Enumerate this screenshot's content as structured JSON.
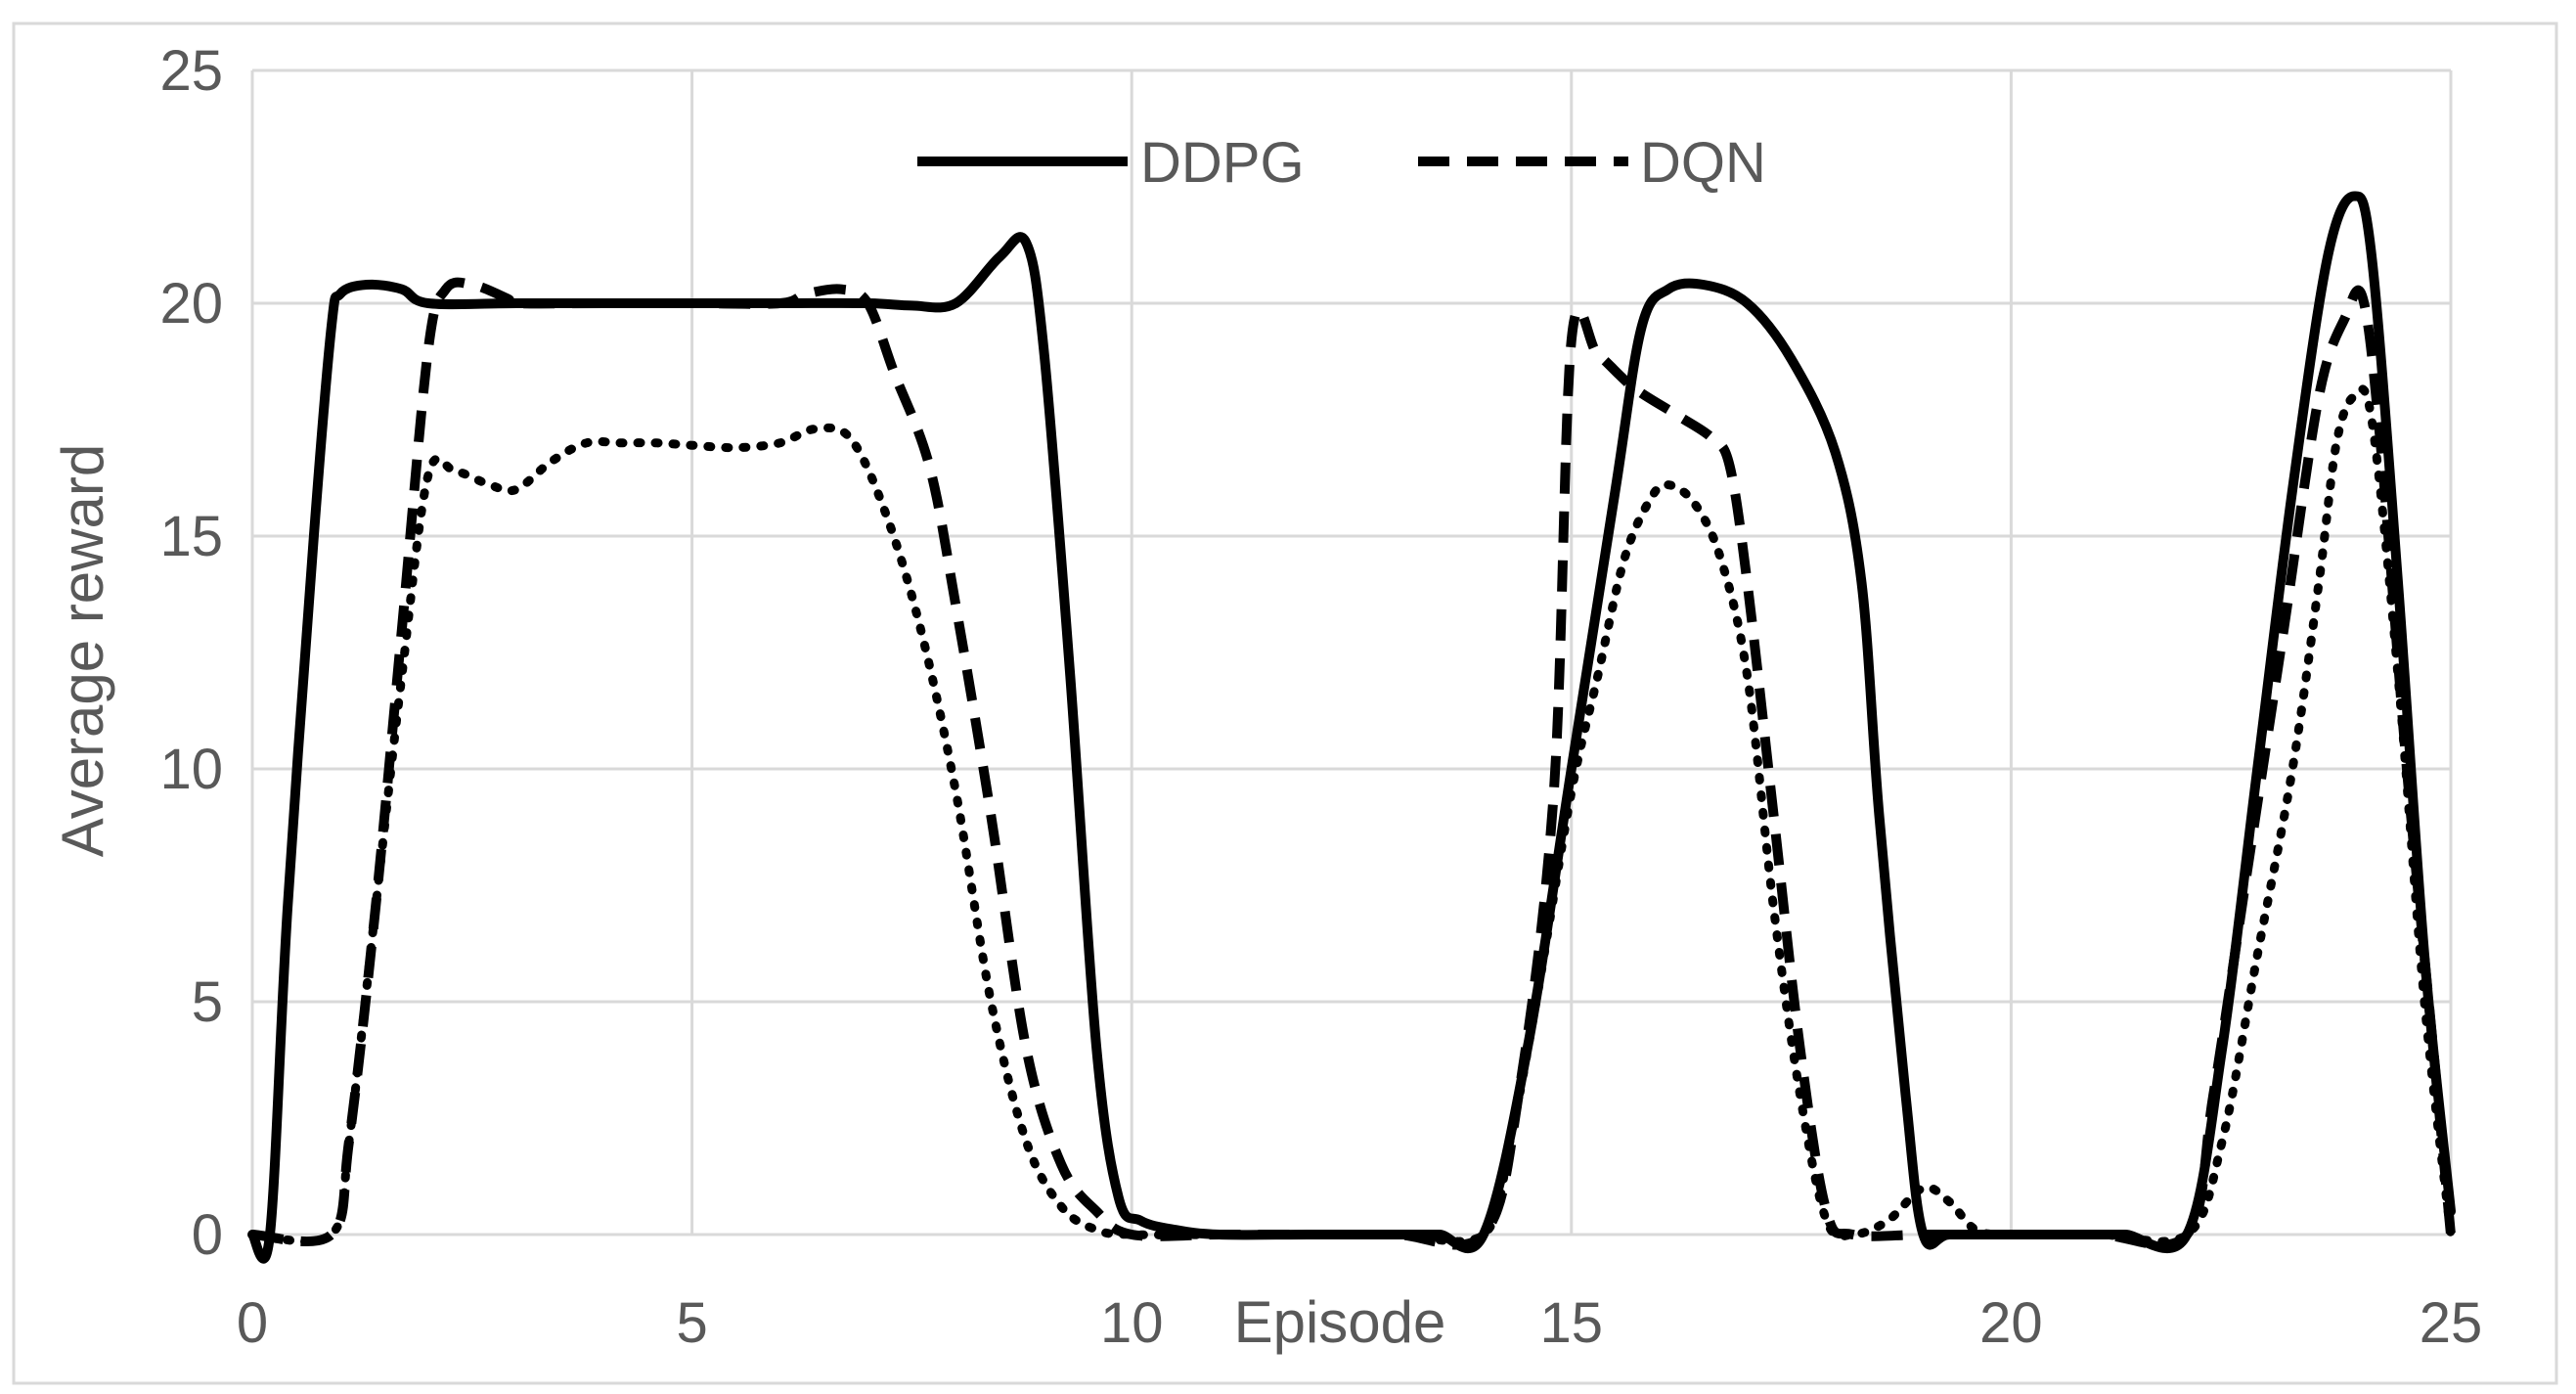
{
  "chart_data": {
    "type": "line",
    "title": "",
    "xlabel": "Episode",
    "ylabel": "Average reward",
    "xlim": [
      0,
      25
    ],
    "ylim": [
      0,
      25
    ],
    "x_ticks": [
      0,
      5,
      10,
      15,
      20,
      25
    ],
    "y_ticks": [
      0,
      5,
      10,
      15,
      20,
      25
    ],
    "grid": true,
    "legend_position": "top-center",
    "series": [
      {
        "name": "DDPG",
        "style": "solid",
        "color": "#000000",
        "points": [
          [
            0,
            0
          ],
          [
            0.2,
            0
          ],
          [
            0.4,
            7
          ],
          [
            0.7,
            15
          ],
          [
            0.9,
            19.5
          ],
          [
            1.0,
            20.2
          ],
          [
            1.3,
            20.4
          ],
          [
            1.7,
            20.3
          ],
          [
            2.0,
            20
          ],
          [
            3,
            20
          ],
          [
            4,
            20
          ],
          [
            5,
            20
          ],
          [
            6,
            20
          ],
          [
            7,
            20
          ],
          [
            7.5,
            19.95
          ],
          [
            8.0,
            20
          ],
          [
            8.5,
            21
          ],
          [
            8.8,
            21.3
          ],
          [
            9.0,
            19
          ],
          [
            9.3,
            12
          ],
          [
            9.6,
            4
          ],
          [
            9.85,
            0.8
          ],
          [
            10.1,
            0.3
          ],
          [
            10.5,
            0.1
          ],
          [
            11,
            0
          ],
          [
            12,
            0
          ],
          [
            13,
            0
          ],
          [
            13.2,
            0
          ],
          [
            13.5,
            0
          ],
          [
            14.0,
            0
          ],
          [
            14.5,
            4
          ],
          [
            15.0,
            10
          ],
          [
            15.5,
            16
          ],
          [
            15.8,
            19.5
          ],
          [
            16.1,
            20.3
          ],
          [
            16.5,
            20.4
          ],
          [
            17,
            20
          ],
          [
            17.5,
            18.8
          ],
          [
            18,
            16.8
          ],
          [
            18.3,
            14
          ],
          [
            18.5,
            9
          ],
          [
            18.8,
            3
          ],
          [
            19,
            0
          ],
          [
            19.3,
            0
          ],
          [
            20,
            0
          ],
          [
            21,
            0
          ],
          [
            21.3,
            0
          ],
          [
            22,
            0
          ],
          [
            22.4,
            4
          ],
          [
            22.8,
            10
          ],
          [
            23.2,
            16
          ],
          [
            23.6,
            21
          ],
          [
            23.9,
            22.3
          ],
          [
            24.1,
            21
          ],
          [
            24.4,
            14
          ],
          [
            24.7,
            6
          ],
          [
            25,
            0.5
          ]
        ]
      },
      {
        "name": "DQN",
        "style": "dashed",
        "color": "#000000",
        "points": [
          [
            0,
            0
          ],
          [
            0.9,
            0
          ],
          [
            1.1,
            2
          ],
          [
            1.4,
            7
          ],
          [
            1.7,
            13
          ],
          [
            2.0,
            19
          ],
          [
            2.2,
            20.3
          ],
          [
            2.5,
            20.4
          ],
          [
            2.9,
            20.1
          ],
          [
            3,
            20
          ],
          [
            4,
            20
          ],
          [
            5,
            20
          ],
          [
            6,
            20
          ],
          [
            6.3,
            20.2
          ],
          [
            6.7,
            20.3
          ],
          [
            7.0,
            20
          ],
          [
            7.3,
            18.5
          ],
          [
            7.7,
            16.5
          ],
          [
            8.0,
            13.5
          ],
          [
            8.4,
            9
          ],
          [
            8.8,
            4
          ],
          [
            9.2,
            1.5
          ],
          [
            9.6,
            0.5
          ],
          [
            10.0,
            0
          ],
          [
            11,
            0
          ],
          [
            12,
            0
          ],
          [
            13,
            0
          ],
          [
            14.0,
            0
          ],
          [
            14.4,
            3
          ],
          [
            14.8,
            9.5
          ],
          [
            15.0,
            19.2
          ],
          [
            15.3,
            18.9
          ],
          [
            15.7,
            18.2
          ],
          [
            16.2,
            17.6
          ],
          [
            16.6,
            17.1
          ],
          [
            16.8,
            16.5
          ],
          [
            17.0,
            14
          ],
          [
            17.3,
            9
          ],
          [
            17.6,
            4
          ],
          [
            17.9,
            0.5
          ],
          [
            18.2,
            0
          ],
          [
            19,
            0
          ],
          [
            20,
            0
          ],
          [
            21,
            0
          ],
          [
            22,
            0
          ],
          [
            22.3,
            3
          ],
          [
            22.7,
            8
          ],
          [
            23.1,
            13
          ],
          [
            23.5,
            18
          ],
          [
            23.8,
            19.7
          ],
          [
            24.0,
            20.1
          ],
          [
            24.2,
            17
          ],
          [
            24.5,
            10
          ],
          [
            24.8,
            4
          ],
          [
            25,
            0
          ]
        ]
      },
      {
        "name": "",
        "style": "dotted",
        "color": "#000000",
        "points": [
          [
            0,
            0
          ],
          [
            0.9,
            0
          ],
          [
            1.1,
            2
          ],
          [
            1.4,
            7
          ],
          [
            1.7,
            12
          ],
          [
            2.0,
            16.3
          ],
          [
            2.3,
            16.4
          ],
          [
            2.7,
            16.1
          ],
          [
            3.0,
            16.0
          ],
          [
            3.4,
            16.6
          ],
          [
            3.8,
            17.0
          ],
          [
            4.2,
            17.0
          ],
          [
            4.6,
            17.0
          ],
          [
            5,
            16.95
          ],
          [
            5.5,
            16.9
          ],
          [
            6.0,
            17.0
          ],
          [
            6.4,
            17.3
          ],
          [
            6.8,
            17.1
          ],
          [
            7.2,
            15.5
          ],
          [
            7.6,
            13
          ],
          [
            8.0,
            9.5
          ],
          [
            8.4,
            5
          ],
          [
            8.8,
            2
          ],
          [
            9.2,
            0.6
          ],
          [
            9.6,
            0.1
          ],
          [
            10,
            0
          ],
          [
            11,
            0
          ],
          [
            12,
            0
          ],
          [
            13,
            0
          ],
          [
            14.0,
            0
          ],
          [
            14.3,
            2
          ],
          [
            14.6,
            5
          ],
          [
            15.0,
            9.5
          ],
          [
            15.3,
            12
          ],
          [
            15.6,
            14.5
          ],
          [
            15.9,
            15.8
          ],
          [
            16.1,
            16.1
          ],
          [
            16.4,
            15.7
          ],
          [
            16.7,
            14.5
          ],
          [
            17.0,
            12
          ],
          [
            17.3,
            7
          ],
          [
            17.6,
            3
          ],
          [
            17.9,
            0.3
          ],
          [
            18.2,
            0
          ],
          [
            18.6,
            0.3
          ],
          [
            19.0,
            1.0
          ],
          [
            19.3,
            0.7
          ],
          [
            19.6,
            0.1
          ],
          [
            20,
            0
          ],
          [
            21,
            0
          ],
          [
            22,
            0
          ],
          [
            22.4,
            2
          ],
          [
            22.8,
            6
          ],
          [
            23.2,
            10
          ],
          [
            23.5,
            14
          ],
          [
            23.7,
            17
          ],
          [
            23.9,
            18.0
          ],
          [
            24.1,
            17.5
          ],
          [
            24.4,
            12
          ],
          [
            24.7,
            5
          ],
          [
            25,
            0
          ]
        ]
      }
    ]
  }
}
